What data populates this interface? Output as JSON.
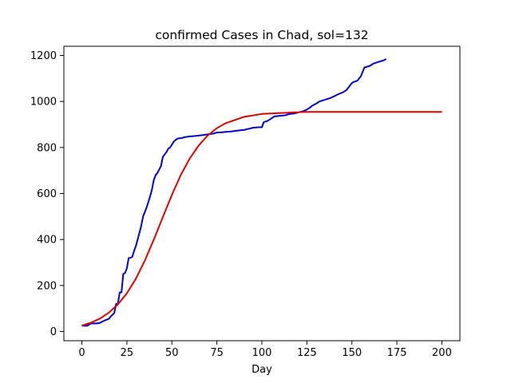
{
  "chart_data": {
    "type": "line",
    "title": "confirmed Cases in Chad, sol=132",
    "xlabel": "Day",
    "ylabel": "",
    "xlim": [
      -10,
      210
    ],
    "ylim": [
      -40,
      1240
    ],
    "xticks": [
      0,
      25,
      50,
      75,
      100,
      125,
      150,
      175,
      200
    ],
    "yticks": [
      0,
      200,
      400,
      600,
      800,
      1000,
      1200
    ],
    "grid": false,
    "series": [
      {
        "color": "#0000cc",
        "x": [
          0,
          3,
          5,
          8,
          10,
          11,
          13,
          15,
          16,
          18,
          19,
          20,
          21,
          22,
          23,
          24,
          25,
          26,
          27,
          28,
          29,
          30,
          31,
          32,
          33,
          34,
          35,
          36,
          37,
          38,
          39,
          40,
          41,
          42,
          43,
          44,
          45,
          46,
          47,
          48,
          49,
          50,
          51,
          52,
          53,
          54,
          55,
          57,
          60,
          63,
          65,
          68,
          70,
          73,
          75,
          78,
          80,
          83,
          85,
          88,
          90,
          92,
          95,
          98,
          100,
          101,
          103,
          105,
          107,
          110,
          113,
          115,
          118,
          120,
          123,
          125,
          127,
          128,
          130,
          132,
          134,
          136,
          138,
          140,
          142,
          145,
          147,
          150,
          151,
          153,
          155,
          157,
          158,
          160,
          162,
          164,
          166,
          168,
          169
        ],
        "y": [
          25,
          25,
          35,
          35,
          37,
          42,
          49,
          55,
          65,
          80,
          120,
          120,
          170,
          170,
          250,
          255,
          275,
          320,
          320,
          325,
          350,
          372,
          400,
          430,
          460,
          500,
          520,
          540,
          565,
          590,
          620,
          660,
          680,
          690,
          705,
          720,
          760,
          770,
          780,
          795,
          800,
          812,
          825,
          832,
          838,
          840,
          840,
          845,
          848,
          850,
          852,
          855,
          857,
          860,
          865,
          866,
          868,
          870,
          872,
          875,
          876,
          880,
          886,
          888,
          888,
          910,
          915,
          925,
          935,
          938,
          940,
          945,
          948,
          952,
          958,
          965,
          975,
          982,
          990,
          1000,
          1005,
          1010,
          1015,
          1022,
          1030,
          1040,
          1050,
          1080,
          1085,
          1090,
          1110,
          1148,
          1150,
          1155,
          1165,
          1170,
          1175,
          1180,
          1185
        ]
      },
      {
        "color": "#dd0000",
        "model": "logistic",
        "x": [
          0,
          5,
          10,
          15,
          20,
          25,
          30,
          35,
          40,
          45,
          50,
          55,
          60,
          65,
          70,
          75,
          80,
          90,
          100,
          125,
          150,
          175,
          200
        ],
        "y": [
          26,
          38,
          56,
          82,
          118,
          166,
          230,
          309,
          400,
          498,
          594,
          681,
          753,
          810,
          853,
          884,
          906,
          933,
          946,
          955,
          955,
          955,
          955
        ]
      }
    ]
  }
}
